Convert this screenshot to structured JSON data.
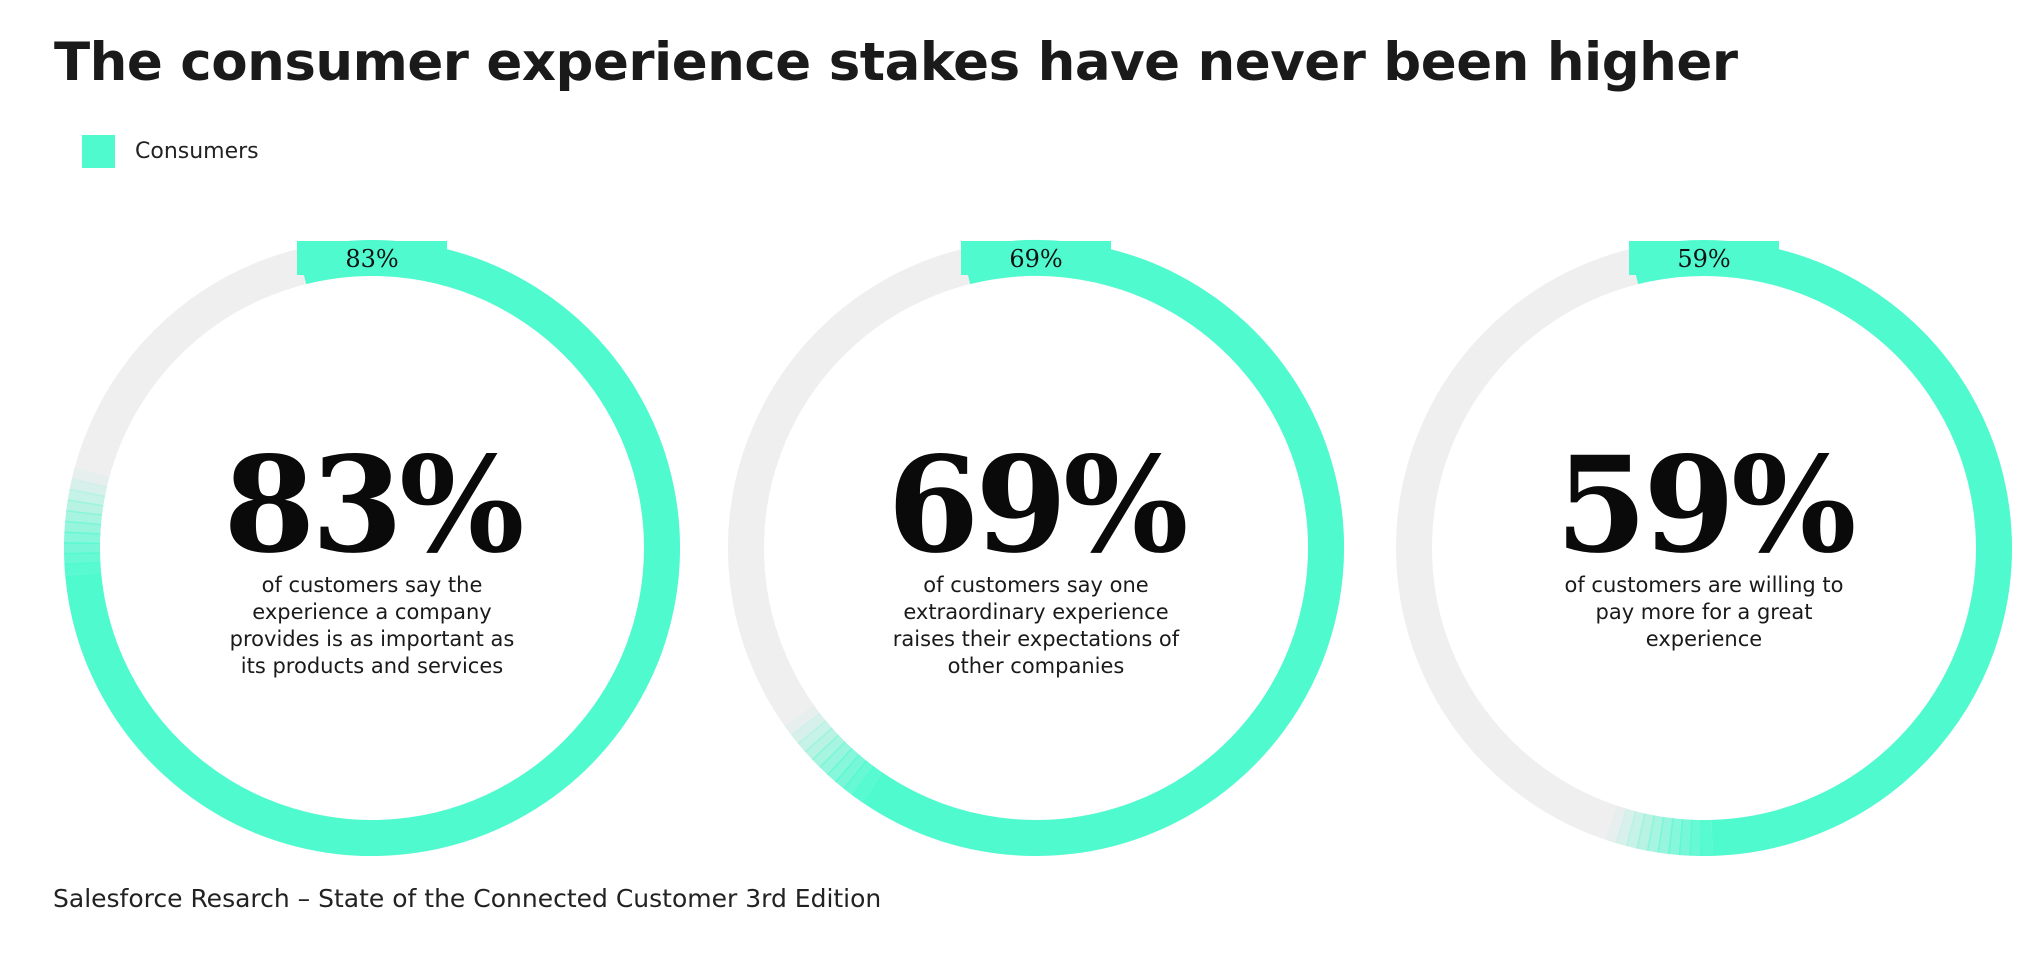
{
  "title": "The consumer experience stakes have never been higher",
  "legend": {
    "label": "Consumers",
    "color": "#4ffacf"
  },
  "chart_data": {
    "type": "pie",
    "series_name": "Consumers",
    "track_color": "#efefef",
    "accent_color": "#4ffacf",
    "items": [
      {
        "value": 83,
        "tab_label": "83%",
        "big_label": "83%",
        "caption": "of customers say the experience a company provides is as important as its products and services"
      },
      {
        "value": 69,
        "tab_label": "69%",
        "big_label": "69%",
        "caption": "of customers say one extraordinary experience raises their expectations of other companies"
      },
      {
        "value": 59,
        "tab_label": "59%",
        "big_label": "59%",
        "caption": "of customers are willing to pay more for a great experience"
      }
    ]
  },
  "source": "Salesforce Resarch – State of the Connected Customer 3rd Edition"
}
